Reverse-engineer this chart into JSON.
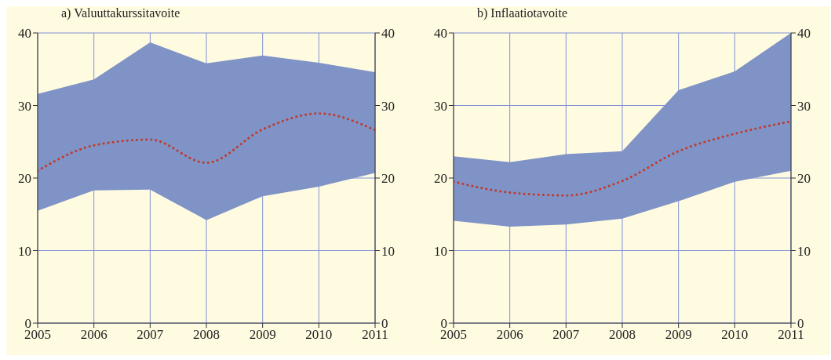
{
  "chart_data": [
    {
      "type": "line",
      "title": "a) Valuuttakurssitavoite",
      "x": [
        2005,
        2006,
        2007,
        2008,
        2009,
        2010,
        2011
      ],
      "xlim": [
        2005,
        2011
      ],
      "xticks": [
        2005,
        2006,
        2007,
        2008,
        2009,
        2010,
        2011
      ],
      "ylim": [
        0,
        40
      ],
      "yticks": [
        0,
        10,
        20,
        30,
        40
      ],
      "y2lim": [
        0,
        40
      ],
      "y2ticks": [
        0,
        10,
        20,
        30,
        40
      ],
      "grid": true,
      "line_style": "dotted",
      "marker": "none",
      "series": [
        {
          "color": "#c0392b",
          "values": [
            21,
            24.5,
            25.3,
            22.1,
            26.7,
            28.9,
            26.6
          ],
          "lower": [
            15.5,
            18.3,
            18.4,
            14.2,
            17.5,
            18.8,
            20.7
          ],
          "upper": [
            31.6,
            33.6,
            38.7,
            35.8,
            36.9,
            35.9,
            34.6
          ]
        }
      ]
    },
    {
      "type": "line",
      "title": "b) Inflaatiotavoite",
      "x": [
        2005,
        2006,
        2007,
        2008,
        2009,
        2010,
        2011
      ],
      "xlim": [
        2005,
        2011
      ],
      "xticks": [
        2005,
        2006,
        2007,
        2008,
        2009,
        2010,
        2011
      ],
      "ylim": [
        0,
        40
      ],
      "yticks": [
        0,
        10,
        20,
        30,
        40
      ],
      "y2lim": [
        0,
        40
      ],
      "y2ticks": [
        0,
        10,
        20,
        30,
        40
      ],
      "grid": true,
      "line_style": "dotted",
      "marker": "none",
      "series": [
        {
          "color": "#c0392b",
          "values": [
            19.5,
            18,
            17.6,
            19.6,
            23.7,
            26.1,
            27.8
          ],
          "lower": [
            14.1,
            13.3,
            13.6,
            14.4,
            16.8,
            19.5,
            21
          ],
          "upper": [
            23,
            22.2,
            23.3,
            23.7,
            32.1,
            34.7,
            40
          ]
        }
      ]
    }
  ]
}
